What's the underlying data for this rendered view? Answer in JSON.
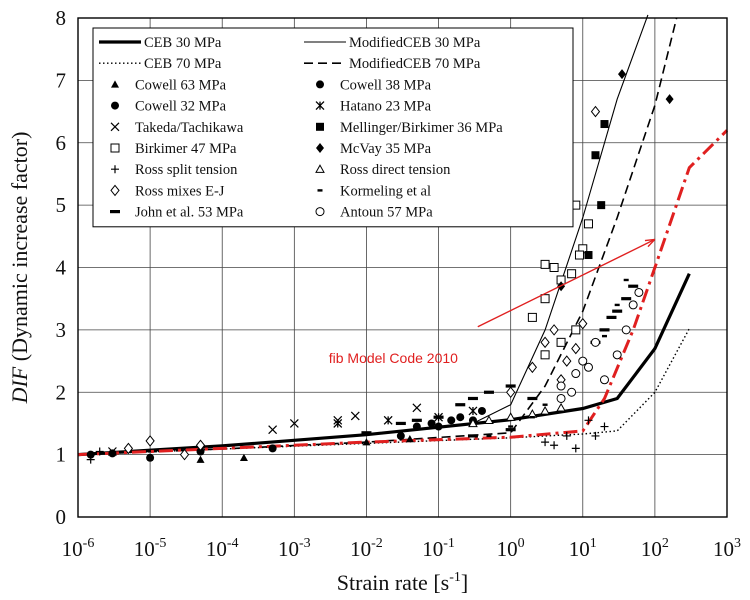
{
  "chart_data": {
    "type": "scatter",
    "xlabel": "Strain rate [s",
    "xlabel_sup": "-1",
    "xlabel_end": "]",
    "ylabel_italic": "DIF",
    "ylabel_rest": " (Dynamic increase factor)",
    "x_scale": "log",
    "xlim": [
      1e-06,
      1000
    ],
    "ylim": [
      0,
      8
    ],
    "grid": true,
    "legend_position": "top-left",
    "x_ticks": [
      {
        "base": "10",
        "exp": "-6"
      },
      {
        "base": "10",
        "exp": "-5"
      },
      {
        "base": "10",
        "exp": "-4"
      },
      {
        "base": "10",
        "exp": "-3"
      },
      {
        "base": "10",
        "exp": "-2"
      },
      {
        "base": "10",
        "exp": "-1"
      },
      {
        "base": "10",
        "exp": "0"
      },
      {
        "base": "10",
        "exp": "1"
      },
      {
        "base": "10",
        "exp": "2"
      },
      {
        "base": "10",
        "exp": "3"
      }
    ],
    "y_ticks": [
      "0",
      "1",
      "2",
      "3",
      "4",
      "5",
      "6",
      "7",
      "8"
    ],
    "curves": [
      {
        "name": "CEB 30 MPa",
        "style": "thick",
        "color": "#000000",
        "points": [
          [
            1e-06,
            1.0
          ],
          [
            0.0001,
            1.14
          ],
          [
            0.01,
            1.32
          ],
          [
            1,
            1.56
          ],
          [
            10,
            1.74
          ],
          [
            30,
            1.9
          ],
          [
            100,
            2.7
          ],
          [
            300,
            3.9
          ]
        ]
      },
      {
        "name": "CEB 70 MPa",
        "style": "dotted",
        "color": "#000000",
        "points": [
          [
            1e-06,
            1.0
          ],
          [
            0.0001,
            1.09
          ],
          [
            0.01,
            1.18
          ],
          [
            1,
            1.27
          ],
          [
            10,
            1.33
          ],
          [
            30,
            1.38
          ],
          [
            100,
            2.0
          ],
          [
            300,
            3.02
          ]
        ]
      },
      {
        "name": "ModifiedCEB 30 MPa",
        "style": "thin",
        "color": "#000000",
        "points": [
          [
            1e-06,
            1.0
          ],
          [
            0.0001,
            1.14
          ],
          [
            0.01,
            1.32
          ],
          [
            0.3,
            1.5
          ],
          [
            1,
            1.8
          ],
          [
            3,
            3.0
          ],
          [
            10,
            4.8
          ],
          [
            30,
            6.7
          ],
          [
            80,
            8.05
          ]
        ]
      },
      {
        "name": "ModifiedCEB 70 MPa",
        "style": "dashed",
        "color": "#000000",
        "points": [
          [
            1e-06,
            1.0
          ],
          [
            0.0001,
            1.09
          ],
          [
            0.01,
            1.2
          ],
          [
            1,
            1.35
          ],
          [
            3,
            2.1
          ],
          [
            10,
            3.3
          ],
          [
            30,
            4.8
          ],
          [
            100,
            6.6
          ],
          [
            200,
            8.0
          ]
        ]
      },
      {
        "name": "fib Model Code 2010",
        "style": "dashdot",
        "color": "#e02020",
        "points": [
          [
            1e-06,
            1.0
          ],
          [
            0.0001,
            1.1
          ],
          [
            0.01,
            1.2
          ],
          [
            1,
            1.28
          ],
          [
            10,
            1.38
          ],
          [
            20,
            1.9
          ],
          [
            50,
            3.0
          ],
          [
            100,
            4.0
          ],
          [
            300,
            5.6
          ],
          [
            1000,
            6.2
          ]
        ]
      }
    ],
    "series": [
      {
        "name": "Cowell 63 MPa",
        "marker": "triangle-filled",
        "points": [
          [
            5e-05,
            0.92
          ],
          [
            0.0002,
            0.95
          ],
          [
            0.01,
            1.2
          ],
          [
            0.04,
            1.25
          ]
        ]
      },
      {
        "name": "Cowell 32 MPa",
        "marker": "circle-filled",
        "points": [
          [
            1.5e-06,
            1.0
          ],
          [
            3e-06,
            1.02
          ],
          [
            1e-05,
            0.95
          ],
          [
            5e-05,
            1.05
          ],
          [
            0.0005,
            1.1
          ],
          [
            0.03,
            1.3
          ],
          [
            0.1,
            1.45
          ],
          [
            0.3,
            1.55
          ]
        ]
      },
      {
        "name": "Takeda/Tachikawa",
        "marker": "x",
        "points": [
          [
            3e-06,
            1.05
          ],
          [
            0.0005,
            1.4
          ],
          [
            0.001,
            1.5
          ],
          [
            0.004,
            1.55
          ],
          [
            0.007,
            1.62
          ],
          [
            0.05,
            1.75
          ]
        ]
      },
      {
        "name": "Birkimer 47 MPa",
        "marker": "square-open",
        "points": [
          [
            3,
            4.05
          ],
          [
            4,
            4.0
          ],
          [
            5,
            4.8
          ],
          [
            6,
            5.2
          ],
          [
            8,
            5.0
          ],
          [
            10,
            4.3
          ],
          [
            2,
            3.2
          ],
          [
            3,
            3.5
          ],
          [
            5,
            3.8
          ],
          [
            7,
            3.9
          ],
          [
            9,
            4.2
          ],
          [
            12,
            4.7
          ],
          [
            3,
            2.6
          ],
          [
            5,
            2.8
          ],
          [
            8,
            3.0
          ]
        ]
      },
      {
        "name": "Ross split tension",
        "marker": "plus",
        "points": [
          [
            1.5e-06,
            0.92
          ],
          [
            2e-06,
            1.05
          ],
          [
            3,
            1.2
          ],
          [
            4,
            1.15
          ],
          [
            6,
            1.3
          ],
          [
            8,
            1.1
          ],
          [
            12,
            1.55
          ],
          [
            15,
            1.3
          ],
          [
            20,
            1.45
          ]
        ]
      },
      {
        "name": "Ross mixes E-J",
        "marker": "diamond-open",
        "points": [
          [
            5e-06,
            1.1
          ],
          [
            1e-05,
            1.22
          ],
          [
            3e-05,
            1.0
          ],
          [
            5e-05,
            1.15
          ],
          [
            1,
            2.0
          ],
          [
            2,
            2.4
          ],
          [
            3,
            2.8
          ],
          [
            4,
            3.0
          ],
          [
            5,
            2.2
          ],
          [
            6,
            2.5
          ],
          [
            8,
            2.7
          ],
          [
            10,
            3.1
          ],
          [
            15,
            6.5
          ]
        ]
      },
      {
        "name": "John et al. 53 MPa",
        "marker": "dash",
        "points": [
          [
            0.01,
            1.35
          ],
          [
            0.03,
            1.5
          ],
          [
            0.05,
            1.55
          ],
          [
            0.1,
            1.6
          ],
          [
            0.2,
            1.8
          ],
          [
            0.3,
            1.9
          ],
          [
            0.5,
            2.0
          ],
          [
            1,
            2.1
          ],
          [
            2,
            1.9
          ],
          [
            0.3,
            1.3
          ],
          [
            1,
            1.4
          ],
          [
            30,
            3.3
          ],
          [
            40,
            3.5
          ],
          [
            50,
            3.7
          ],
          [
            15,
            2.8
          ],
          [
            20,
            3.0
          ],
          [
            25,
            3.2
          ]
        ]
      },
      {
        "name": "Cowell 38 MPa",
        "marker": "circle-filled",
        "points": [
          [
            0.05,
            1.45
          ],
          [
            0.08,
            1.5
          ],
          [
            0.15,
            1.55
          ],
          [
            0.2,
            1.6
          ],
          [
            0.4,
            1.7
          ]
        ]
      },
      {
        "name": "Hatano 23 MPa",
        "marker": "star",
        "points": [
          [
            0.004,
            1.5
          ],
          [
            0.02,
            1.55
          ],
          [
            0.1,
            1.6
          ],
          [
            0.3,
            1.7
          ]
        ]
      },
      {
        "name": "Mellinger/Birkimer 36 MPa",
        "marker": "square-filled",
        "points": [
          [
            15,
            5.8
          ],
          [
            20,
            6.3
          ],
          [
            12,
            4.2
          ],
          [
            18,
            5.0
          ]
        ]
      },
      {
        "name": "McVay 35 MPa",
        "marker": "diamond-filled",
        "points": [
          [
            35,
            7.1
          ],
          [
            160,
            6.7
          ],
          [
            5,
            3.7
          ]
        ]
      },
      {
        "name": "Ross direct tension",
        "marker": "triangle-open",
        "points": [
          [
            0.5,
            1.55
          ],
          [
            1,
            1.6
          ],
          [
            2,
            1.65
          ],
          [
            3,
            1.7
          ],
          [
            5,
            1.75
          ],
          [
            0.3,
            1.5
          ]
        ]
      },
      {
        "name": "Kormeling et al",
        "marker": "dash-small",
        "points": [
          [
            0.5,
            1.3
          ],
          [
            1,
            1.45
          ],
          [
            2,
            1.6
          ],
          [
            3,
            1.8
          ],
          [
            10,
            2.5
          ],
          [
            20,
            2.9
          ],
          [
            30,
            3.4
          ],
          [
            40,
            3.8
          ]
        ]
      },
      {
        "name": "Antoun 57 MPa",
        "marker": "circle-open",
        "points": [
          [
            5,
            2.1
          ],
          [
            8,
            2.3
          ],
          [
            10,
            2.5
          ],
          [
            15,
            2.8
          ],
          [
            20,
            2.2
          ],
          [
            30,
            2.6
          ],
          [
            40,
            3.0
          ],
          [
            50,
            3.4
          ],
          [
            60,
            3.6
          ],
          [
            5,
            1.9
          ],
          [
            7,
            2.0
          ],
          [
            12,
            2.4
          ]
        ]
      }
    ],
    "legend": [
      {
        "label": "CEB 30 MPa",
        "type": "line",
        "style": "thick"
      },
      {
        "label": "ModifiedCEB 30 MPa",
        "type": "line",
        "style": "thin"
      },
      {
        "label": "CEB 70 MPa",
        "type": "line",
        "style": "dotted"
      },
      {
        "label": "ModifiedCEB 70 MPa",
        "type": "line",
        "style": "dashed"
      },
      {
        "label": "Cowell 63 MPa",
        "type": "marker",
        "marker": "triangle-filled"
      },
      {
        "label": "Cowell 38 MPa",
        "type": "marker",
        "marker": "circle-filled"
      },
      {
        "label": "Cowell 32 MPa",
        "type": "marker",
        "marker": "circle-filled"
      },
      {
        "label": "Hatano 23 MPa",
        "type": "marker",
        "marker": "star"
      },
      {
        "label": "Takeda/Tachikawa",
        "type": "marker",
        "marker": "x"
      },
      {
        "label": "Mellinger/Birkimer 36 MPa",
        "type": "marker",
        "marker": "square-filled"
      },
      {
        "label": "Birkimer 47 MPa",
        "type": "marker",
        "marker": "square-open"
      },
      {
        "label": "McVay 35 MPa",
        "type": "marker",
        "marker": "diamond-filled"
      },
      {
        "label": "Ross split tension",
        "type": "marker",
        "marker": "plus"
      },
      {
        "label": "Ross direct tension",
        "type": "marker",
        "marker": "triangle-open"
      },
      {
        "label": "Ross mixes E-J",
        "type": "marker",
        "marker": "diamond-open"
      },
      {
        "label": "Kormeling et al",
        "type": "marker",
        "marker": "dash-small"
      },
      {
        "label": "John et al. 53 MPa",
        "type": "marker",
        "marker": "dash"
      },
      {
        "label": "Antoun 57 MPa",
        "type": "marker",
        "marker": "circle-open"
      }
    ],
    "annotations": [
      {
        "text": "fib Model Code 2010",
        "color": "#e02020",
        "arrow_to": [
          100,
          4.45
        ]
      }
    ]
  }
}
